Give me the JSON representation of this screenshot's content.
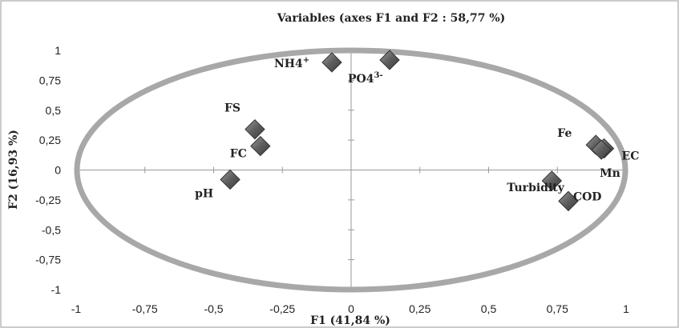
{
  "chart_data": {
    "type": "scatter",
    "title": "Variables (axes F1 and F2 : 58,77 %)",
    "xlabel": "F1 (41,84 %)",
    "ylabel": "F2 (16,93 %)",
    "xlim": [
      -1,
      1
    ],
    "ylim": [
      -1,
      1
    ],
    "x_ticks": [
      "-1",
      "-0,75",
      "-0,5",
      "-0,25",
      "0",
      "0,25",
      "0,5",
      "0,75",
      "1"
    ],
    "y_ticks": [
      "1",
      "0,75",
      "0,5",
      "0,25",
      "0",
      "-0,25",
      "-0,5",
      "-0,75",
      "-1"
    ],
    "circle": "unit correlation circle",
    "points": [
      {
        "label": "NH4",
        "label_sup": "+",
        "label_sub": "",
        "x": -0.07,
        "y": 0.9
      },
      {
        "label": "PO4",
        "label_sup": "3-",
        "label_sub": "",
        "x": 0.14,
        "y": 0.92
      },
      {
        "label": "FS",
        "label_sup": "",
        "label_sub": "",
        "x": -0.35,
        "y": 0.34
      },
      {
        "label": "FC",
        "label_sup": "",
        "label_sub": "",
        "x": -0.33,
        "y": 0.2
      },
      {
        "label": "pH",
        "label_sup": "",
        "label_sub": "",
        "x": -0.44,
        "y": -0.08
      },
      {
        "label": "Fe",
        "label_sup": "",
        "label_sub": "",
        "x": 0.89,
        "y": 0.21
      },
      {
        "label": "EC",
        "label_sup": "",
        "label_sub": "",
        "x": 0.92,
        "y": 0.18
      },
      {
        "label": "Mn",
        "label_sup": "",
        "label_sub": "",
        "x": 0.91,
        "y": 0.17
      },
      {
        "label": "Turbidity",
        "label_sup": "",
        "label_sub": "",
        "x": 0.73,
        "y": -0.09
      },
      {
        "label": "COD",
        "label_sup": "",
        "label_sub": "",
        "x": 0.79,
        "y": -0.26
      }
    ]
  }
}
